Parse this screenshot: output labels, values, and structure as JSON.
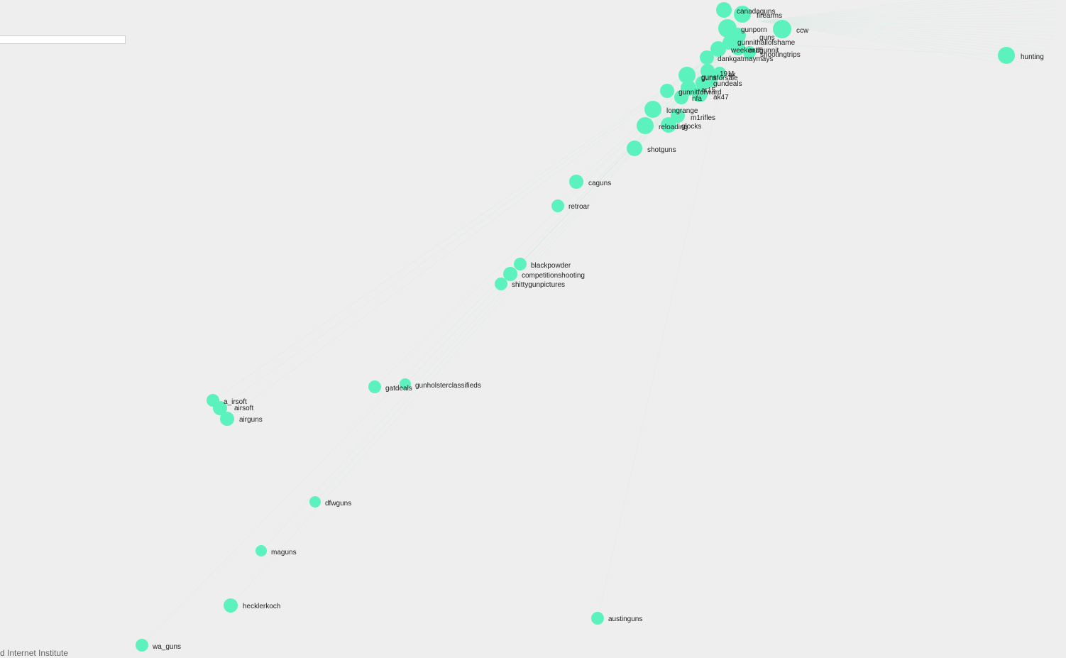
{
  "search": {
    "value": ""
  },
  "credit": {
    "text": "ford Internet Institute"
  },
  "graph": {
    "node_color": "#5cf2be",
    "edge_color": "#d6ebe5",
    "label_color": "#222222",
    "nodes": [
      {
        "name": "canadaguns"
      },
      {
        "name": "firearms"
      },
      {
        "name": "gunporn"
      },
      {
        "name": "ccw"
      },
      {
        "name": "guns"
      },
      {
        "name": "gunnithallofshame"
      },
      {
        "name": "weekendgunnit"
      },
      {
        "name": "ar15"
      },
      {
        "name": "shootingtrips"
      },
      {
        "name": "dankgatmaymays"
      },
      {
        "name": "1911"
      },
      {
        "name": "ak"
      },
      {
        "name": "guns"
      },
      {
        "name": "gunsforsale"
      },
      {
        "name": "gundeals"
      },
      {
        "name": "gunnitforward"
      },
      {
        "name": "ar15"
      },
      {
        "name": "nfa"
      },
      {
        "name": "ak47"
      },
      {
        "name": "longrange"
      },
      {
        "name": "m1rifles"
      },
      {
        "name": "reloading"
      },
      {
        "name": "glocks"
      },
      {
        "name": "shotguns"
      },
      {
        "name": "caguns"
      },
      {
        "name": "retroar"
      },
      {
        "name": "blackpowder"
      },
      {
        "name": "competitionshooting"
      },
      {
        "name": "shittygunpictures"
      },
      {
        "name": "gatdeals"
      },
      {
        "name": "gunholsterclassifieds"
      },
      {
        "name": "a_irsoft"
      },
      {
        "name": "airsoft"
      },
      {
        "name": "airguns"
      },
      {
        "name": "dfwguns"
      },
      {
        "name": "maguns"
      },
      {
        "name": "hecklerkoch"
      },
      {
        "name": "austinguns"
      },
      {
        "name": "wa_guns"
      },
      {
        "name": "hunting"
      }
    ]
  }
}
